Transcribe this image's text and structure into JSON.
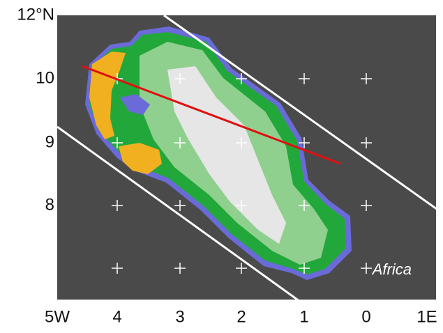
{
  "map": {
    "lat_labels": [
      "12°N",
      "10",
      "9",
      "8"
    ],
    "lon_labels": [
      "5W",
      "4",
      "3",
      "2",
      "1",
      "0",
      "1E"
    ],
    "annotation": "Africa"
  }
}
